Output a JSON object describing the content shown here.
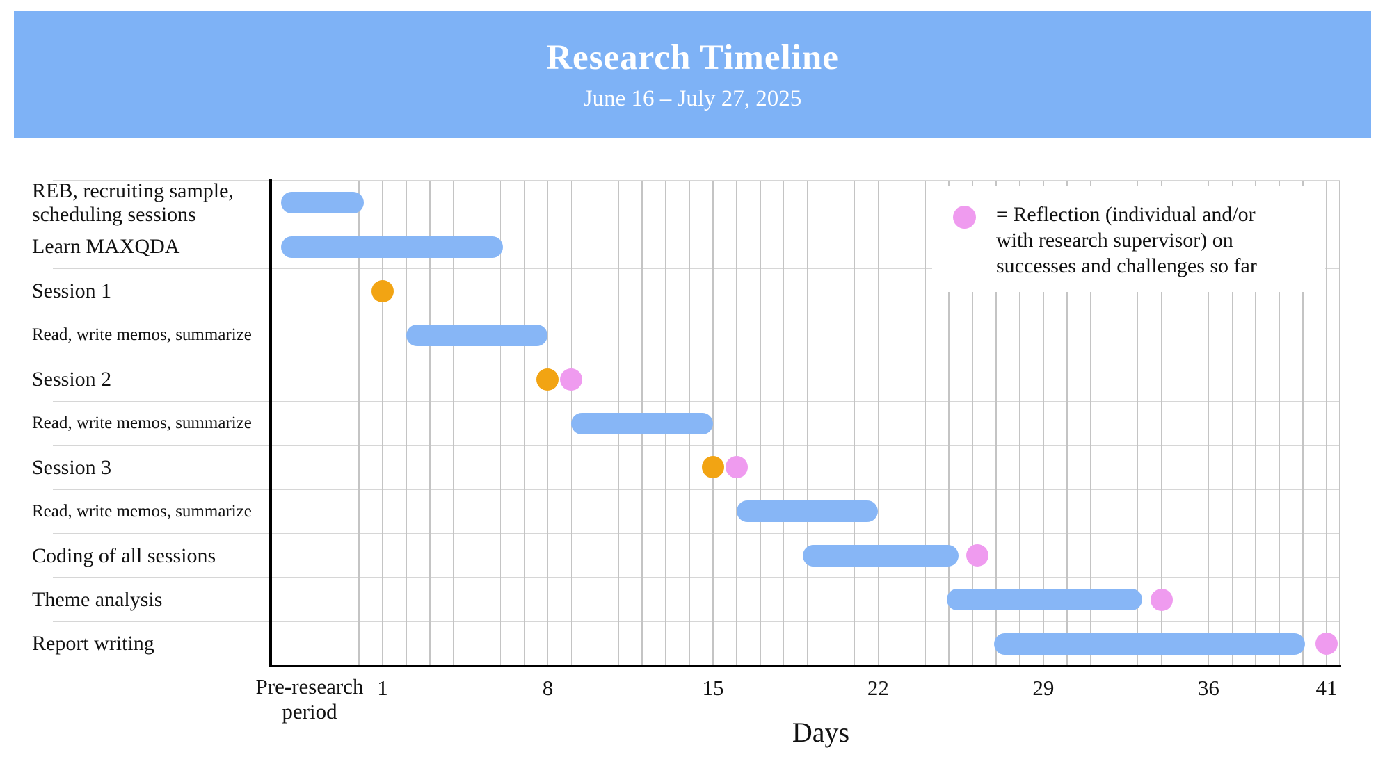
{
  "header": {
    "title": "Research Timeline",
    "subtitle": "June 16 – July 27, 2025",
    "bg_color": "#7EB2F6",
    "text_color": "#FFFFFF"
  },
  "legend": {
    "text": "= Reflection (individual and/or\nwith research supervisor) on\nsuccesses and challenges so far",
    "dot_color": "#EF9BEF"
  },
  "axis": {
    "x_label": "Days",
    "pre_research_label": "Pre-research\nperiod"
  },
  "chart_data": {
    "type": "gantt",
    "title": "Research Timeline",
    "subtitle": "June 16 – July 27, 2025",
    "xlabel": "Days",
    "x_ticks": [
      1,
      8,
      15,
      22,
      29,
      36,
      41
    ],
    "x_gridline_days": [
      0,
      41
    ],
    "x_domain_days": [
      -3.75,
      41.6
    ],
    "grid": true,
    "legend_position": "top-right",
    "legend_note": "= Reflection (individual and/or with research supervisor) on successes and challenges so far",
    "colors": {
      "bar": "#87B6F6",
      "session_dot": "#F2A413",
      "reflection_dot": "#EF9BEF",
      "header": "#7EB2F6"
    },
    "tasks": [
      {
        "label": "REB, recruiting sample, scheduling sessions",
        "bar_start": -3.3,
        "bar_end": 0.2
      },
      {
        "label": "Learn MAXQDA",
        "bar_start": -3.3,
        "bar_end": 6.1
      },
      {
        "label": "Session 1",
        "session_day": 1
      },
      {
        "label": "Read, write memos, summarize",
        "small_label": true,
        "bar_start": 2,
        "bar_end": 8
      },
      {
        "label": "Session 2",
        "session_day": 8,
        "reflection_day": 9
      },
      {
        "label": "Read, write memos, summarize",
        "small_label": true,
        "bar_start": 9,
        "bar_end": 15
      },
      {
        "label": "Session 3",
        "session_day": 15,
        "reflection_day": 16
      },
      {
        "label": "Read, write memos, summarize",
        "small_label": true,
        "bar_start": 16,
        "bar_end": 22
      },
      {
        "label": "Coding of all sessions",
        "bar_start": 18.8,
        "bar_end": 25.4,
        "reflection_day": 26.2
      },
      {
        "label": "Theme analysis",
        "bar_start": 24.9,
        "bar_end": 33.2,
        "reflection_day": 34
      },
      {
        "label": "Report writing",
        "bar_start": 26.9,
        "bar_end": 40.1,
        "reflection_day": 41
      }
    ]
  }
}
